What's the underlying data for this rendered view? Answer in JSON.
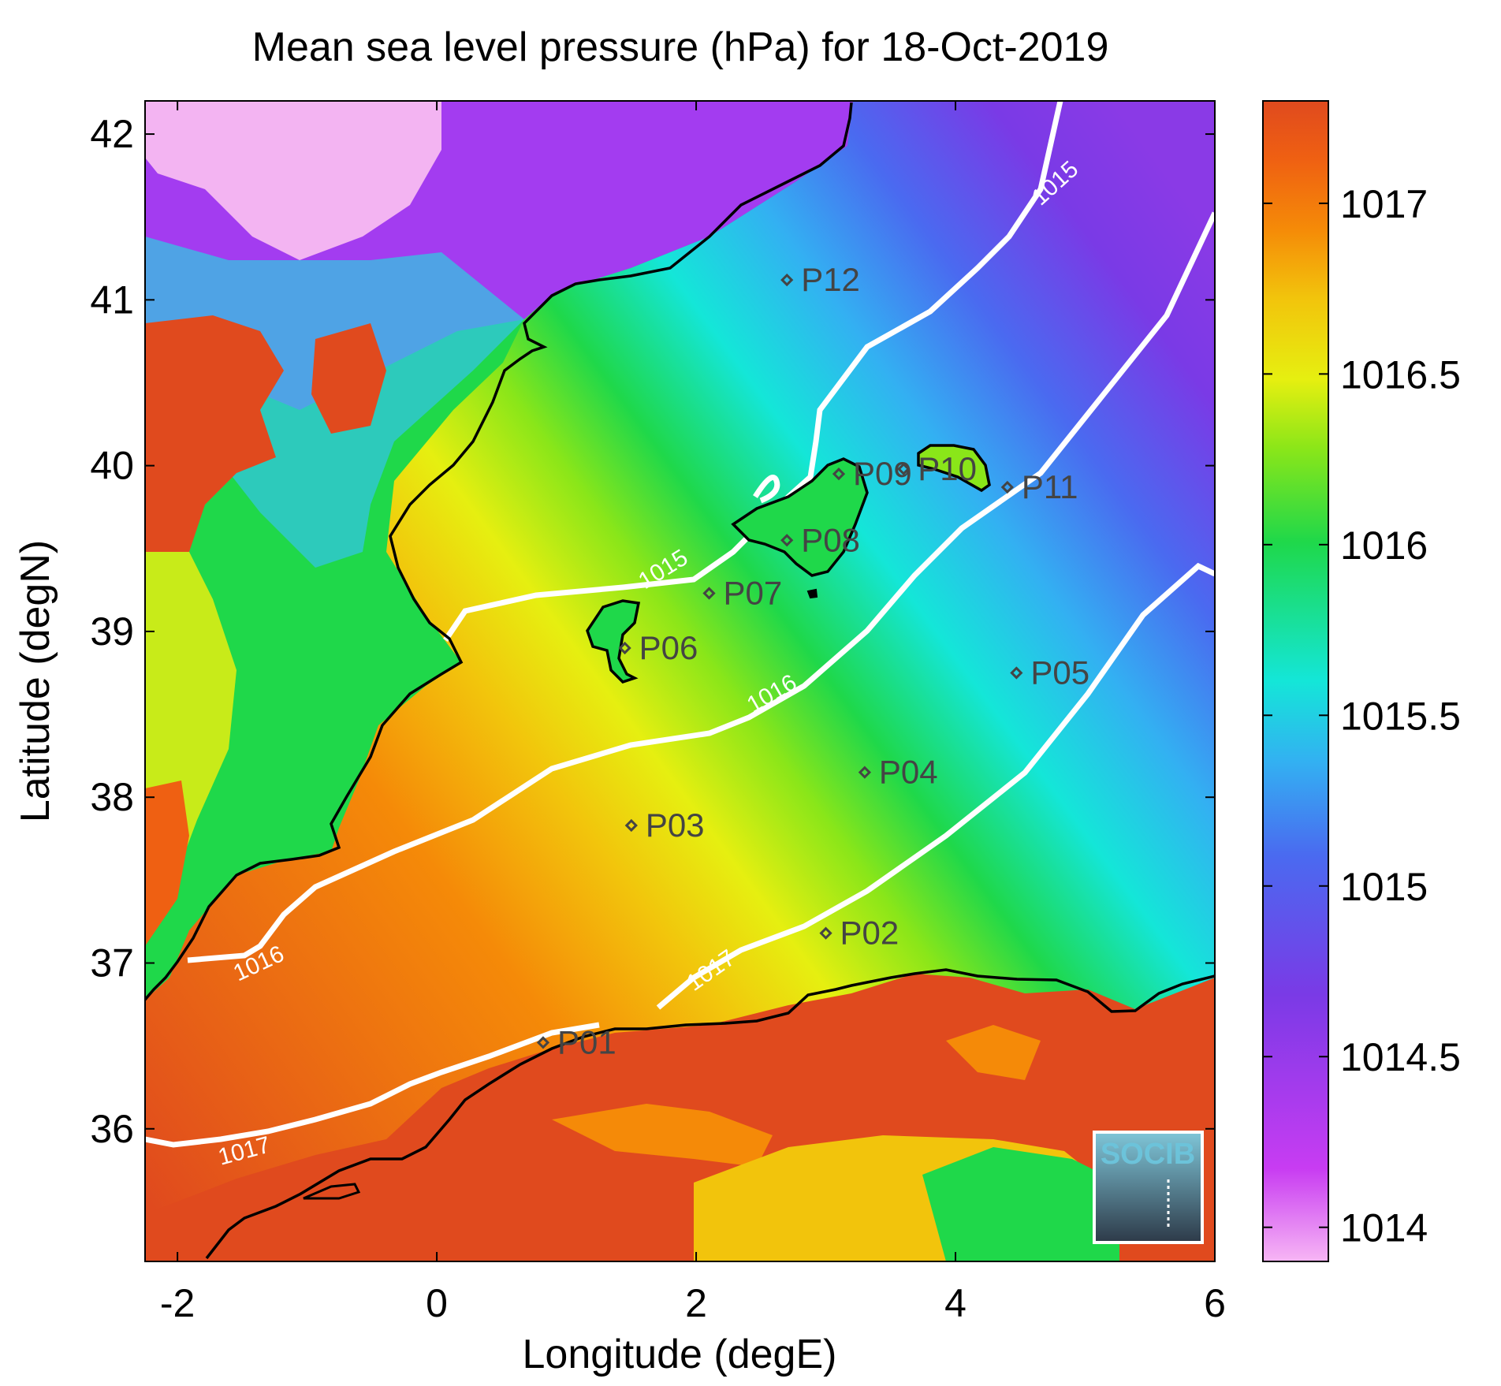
{
  "title": "Mean sea level pressure (hPa) for 18-Oct-2019",
  "axes": {
    "xlabel": "Longitude (degE)",
    "ylabel": "Latitude (degN)",
    "xlim": [
      -2.25,
      6.0
    ],
    "ylim": [
      35.2,
      42.2
    ],
    "xticks": [
      -2,
      0,
      2,
      4,
      6
    ],
    "yticks": [
      36,
      37,
      38,
      39,
      40,
      41,
      42
    ]
  },
  "colorbar": {
    "range": [
      1013.9,
      1017.3
    ],
    "ticks": [
      1014,
      1014.5,
      1015,
      1015.5,
      1016,
      1016.5,
      1017
    ],
    "colormap": [
      "#f7b6f4",
      "#c83cf2",
      "#7a3ae6",
      "#4a6af0",
      "#33b0f2",
      "#14e6d8",
      "#1fd84a",
      "#8ae619",
      "#e6ef10",
      "#f2c40c",
      "#f58a08",
      "#ef6012",
      "#e04a1e"
    ]
  },
  "isobars": [
    {
      "value": "1015",
      "color": "#ffffff"
    },
    {
      "value": "1016",
      "color": "#ffffff"
    },
    {
      "value": "1017",
      "color": "#ffffff"
    }
  ],
  "points": [
    {
      "label": "P01",
      "lon": 0.82,
      "lat": 36.52
    },
    {
      "label": "P02",
      "lon": 3.0,
      "lat": 37.18
    },
    {
      "label": "P03",
      "lon": 1.5,
      "lat": 37.83
    },
    {
      "label": "P04",
      "lon": 3.3,
      "lat": 38.15
    },
    {
      "label": "P05",
      "lon": 4.47,
      "lat": 38.75
    },
    {
      "label": "P06",
      "lon": 1.45,
      "lat": 38.9
    },
    {
      "label": "P07",
      "lon": 2.1,
      "lat": 39.23
    },
    {
      "label": "P08",
      "lon": 2.7,
      "lat": 39.55
    },
    {
      "label": "P09",
      "lon": 3.1,
      "lat": 39.95
    },
    {
      "label": "P10",
      "lon": 3.6,
      "lat": 39.98
    },
    {
      "label": "P11",
      "lon": 4.4,
      "lat": 39.87
    },
    {
      "label": "P12",
      "lon": 2.7,
      "lat": 41.12
    }
  ],
  "logo": {
    "text": "SOCIB"
  }
}
